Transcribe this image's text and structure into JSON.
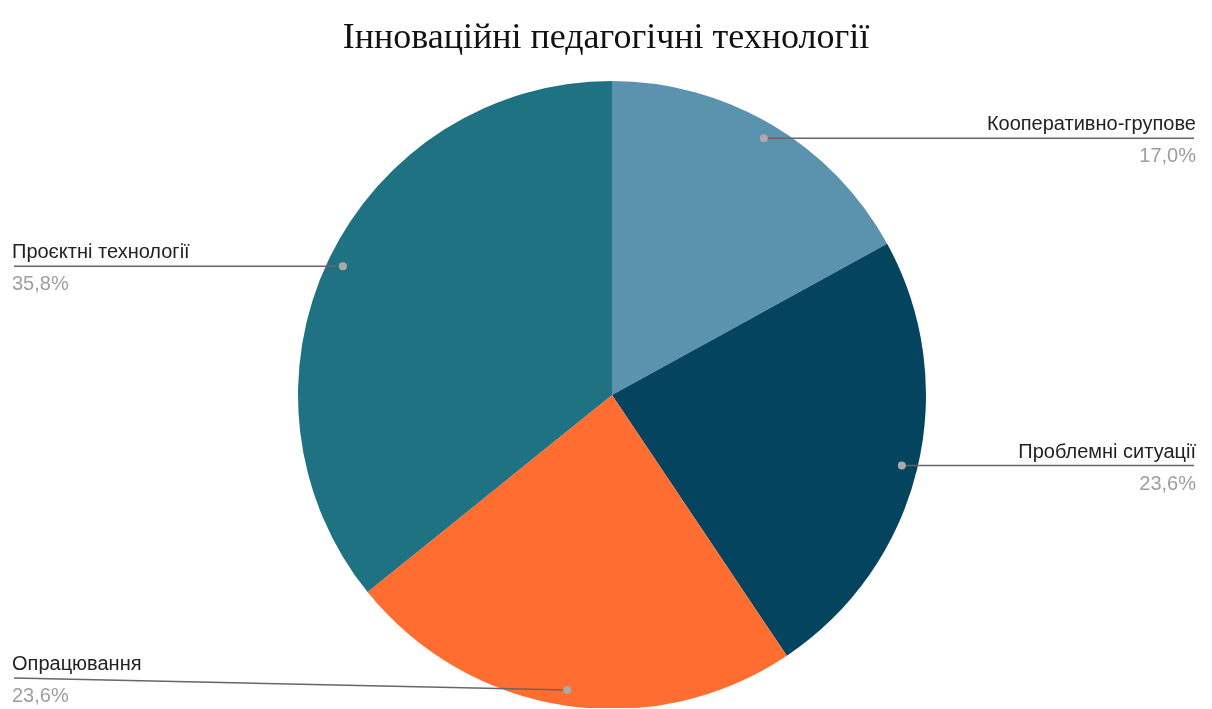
{
  "chart_data": {
    "type": "pie",
    "title": "Інноваційні педагогічні технології",
    "categories": [
      "Кооперативно-групове",
      "Проблемні ситуації",
      "Опрацювання",
      "Проєктні технології"
    ],
    "values": [
      17.0,
      23.6,
      23.6,
      35.8
    ],
    "value_labels": [
      "17,0%",
      "23,6%",
      "23,6%",
      "35,8%"
    ],
    "colors": [
      "#5b93ae",
      "#04445f",
      "#ff6d31",
      "#1e7282"
    ]
  }
}
